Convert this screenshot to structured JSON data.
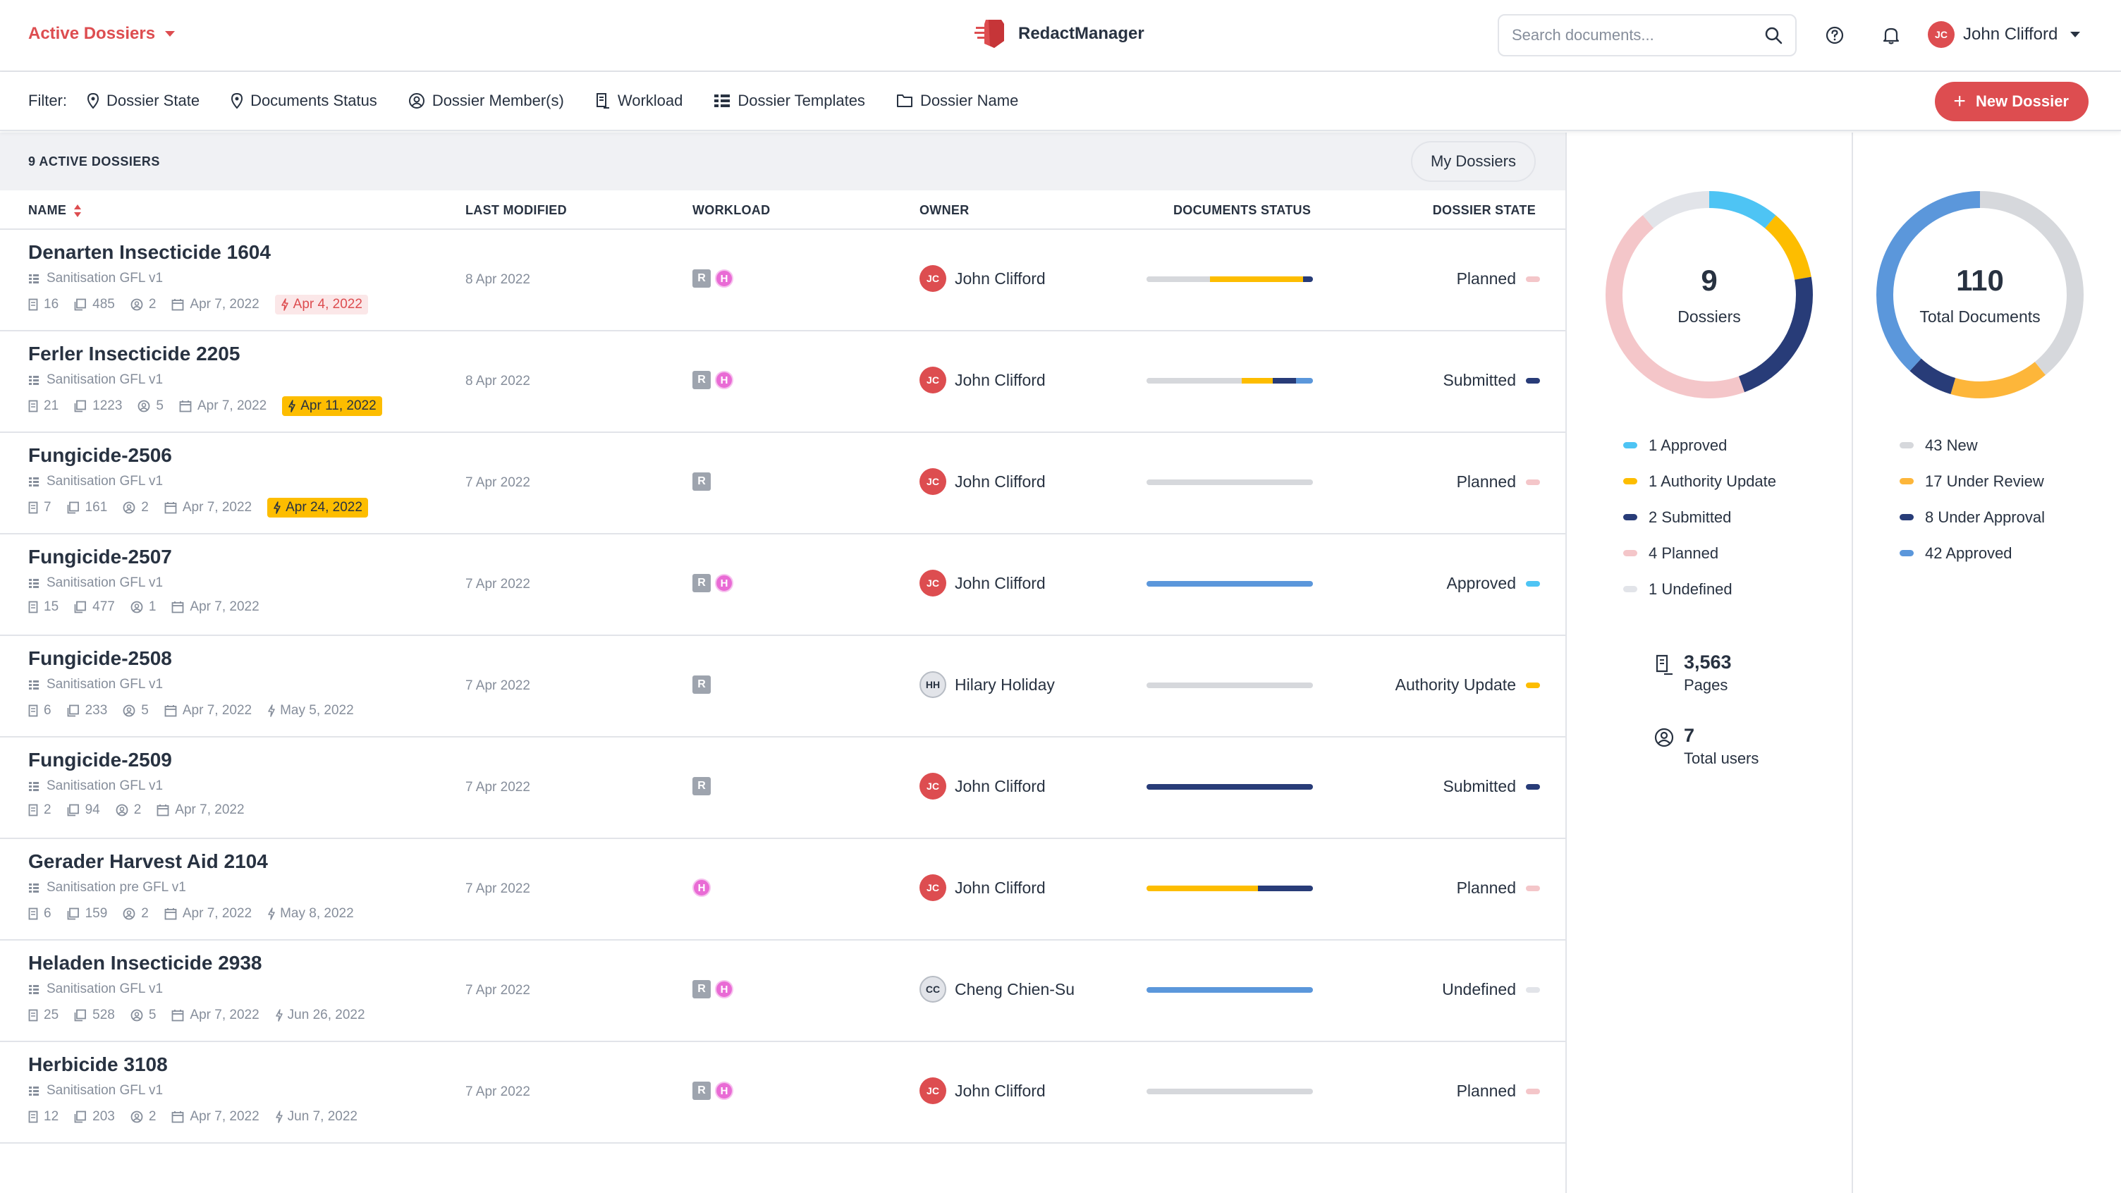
{
  "header": {
    "workspace_selector": "Active Dossiers",
    "brand_name": "RedactManager",
    "search_placeholder": "Search documents...",
    "user": {
      "initials": "JC",
      "name": "John Clifford"
    }
  },
  "filters": {
    "label": "Filter:",
    "items": [
      {
        "label": "Dossier State",
        "icon": "pin-icon"
      },
      {
        "label": "Documents Status",
        "icon": "pin-icon"
      },
      {
        "label": "Dossier Member(s)",
        "icon": "user-circle-icon"
      },
      {
        "label": "Workload",
        "icon": "document-edit-icon"
      },
      {
        "label": "Dossier Templates",
        "icon": "template-list-icon"
      },
      {
        "label": "Dossier Name",
        "icon": "folder-icon"
      }
    ],
    "new_button": "New Dossier"
  },
  "list": {
    "count_label": "9 ACTIVE DOSSIERS",
    "my_dossiers_button": "My Dossiers",
    "columns": [
      "NAME",
      "LAST MODIFIED",
      "WORKLOAD",
      "OWNER",
      "DOCUMENTS STATUS",
      "DOSSIER STATE"
    ],
    "rows": [
      {
        "name": "Denarten Insecticide 1604",
        "template": "Sanitisation GFL v1",
        "documents": "16",
        "pages": "485",
        "members": "2",
        "created": "Apr 7, 2022",
        "due": "Apr 4, 2022",
        "due_style": "red",
        "modified": "8 Apr 2022",
        "workload": [
          "R",
          "H"
        ],
        "owner_initials": "JC",
        "owner": "John Clifford",
        "owner_style": "red",
        "state": "Planned",
        "state_color": "#f4c6c9",
        "status": [
          {
            "color": "#d6d8dc",
            "fraction": 0.38
          },
          {
            "color": "#fdbd00",
            "fraction": 0.56
          },
          {
            "color": "#283c78",
            "fraction": 0.06
          }
        ]
      },
      {
        "name": "Ferler Insecticide 2205",
        "template": "Sanitisation GFL v1",
        "documents": "21",
        "pages": "1223",
        "members": "5",
        "created": "Apr 7, 2022",
        "due": "Apr 11, 2022",
        "due_style": "yellow",
        "modified": "8 Apr 2022",
        "workload": [
          "R",
          "H"
        ],
        "owner_initials": "JC",
        "owner": "John Clifford",
        "owner_style": "red",
        "state": "Submitted",
        "state_color": "#283c78",
        "status": [
          {
            "color": "#d6d8dc",
            "fraction": 0.57
          },
          {
            "color": "#fdbd00",
            "fraction": 0.19
          },
          {
            "color": "#283c78",
            "fraction": 0.14
          },
          {
            "color": "#5b97db",
            "fraction": 0.1
          }
        ]
      },
      {
        "name": "Fungicide-2506",
        "template": "Sanitisation GFL v1",
        "documents": "7",
        "pages": "161",
        "members": "2",
        "created": "Apr 7, 2022",
        "due": "Apr 24, 2022",
        "due_style": "yellow",
        "modified": "7 Apr 2022",
        "workload": [
          "R"
        ],
        "owner_initials": "JC",
        "owner": "John Clifford",
        "owner_style": "red",
        "state": "Planned",
        "state_color": "#f4c6c9",
        "status": [
          {
            "color": "#d6d8dc",
            "fraction": 1.0
          }
        ]
      },
      {
        "name": "Fungicide-2507",
        "template": "Sanitisation GFL v1",
        "documents": "15",
        "pages": "477",
        "members": "1",
        "created": "Apr 7, 2022",
        "due": "",
        "due_style": "none",
        "modified": "7 Apr 2022",
        "workload": [
          "R",
          "H"
        ],
        "owner_initials": "JC",
        "owner": "John Clifford",
        "owner_style": "red",
        "state": "Approved",
        "state_color": "#4ec4f4",
        "status": [
          {
            "color": "#5b97db",
            "fraction": 1.0
          }
        ]
      },
      {
        "name": "Fungicide-2508",
        "template": "Sanitisation GFL v1",
        "documents": "6",
        "pages": "233",
        "members": "5",
        "created": "Apr 7, 2022",
        "due": "May 5, 2022",
        "due_style": "plain",
        "modified": "7 Apr 2022",
        "workload": [
          "R"
        ],
        "owner_initials": "HH",
        "owner": "Hilary Holiday",
        "owner_style": "gray",
        "state": "Authority Update",
        "state_color": "#fdbd00",
        "status": [
          {
            "color": "#d6d8dc",
            "fraction": 1.0
          }
        ]
      },
      {
        "name": "Fungicide-2509",
        "template": "Sanitisation GFL v1",
        "documents": "2",
        "pages": "94",
        "members": "2",
        "created": "Apr 7, 2022",
        "due": "",
        "due_style": "none",
        "modified": "7 Apr 2022",
        "workload": [
          "R"
        ],
        "owner_initials": "JC",
        "owner": "John Clifford",
        "owner_style": "red",
        "state": "Submitted",
        "state_color": "#283c78",
        "status": [
          {
            "color": "#283c78",
            "fraction": 1.0
          }
        ]
      },
      {
        "name": "Gerader Harvest Aid 2104",
        "template": "Sanitisation pre GFL v1",
        "documents": "6",
        "pages": "159",
        "members": "2",
        "created": "Apr 7, 2022",
        "due": "May 8, 2022",
        "due_style": "plain",
        "modified": "7 Apr 2022",
        "workload": [
          "H"
        ],
        "owner_initials": "JC",
        "owner": "John Clifford",
        "owner_style": "red",
        "state": "Planned",
        "state_color": "#f4c6c9",
        "status": [
          {
            "color": "#fdbd00",
            "fraction": 0.67
          },
          {
            "color": "#283c78",
            "fraction": 0.33
          }
        ]
      },
      {
        "name": "Heladen Insecticide 2938",
        "template": "Sanitisation GFL v1",
        "documents": "25",
        "pages": "528",
        "members": "5",
        "created": "Apr 7, 2022",
        "due": "Jun 26, 2022",
        "due_style": "plain",
        "modified": "7 Apr 2022",
        "workload": [
          "R",
          "H"
        ],
        "owner_initials": "CC",
        "owner": "Cheng Chien-Su",
        "owner_style": "gray",
        "state": "Undefined",
        "state_color": "#e2e4e9",
        "status": [
          {
            "color": "#5b97db",
            "fraction": 1.0
          }
        ]
      },
      {
        "name": "Herbicide 3108",
        "template": "Sanitisation GFL v1",
        "documents": "12",
        "pages": "203",
        "members": "2",
        "created": "Apr 7, 2022",
        "due": "Jun 7, 2022",
        "due_style": "plain",
        "modified": "7 Apr 2022",
        "workload": [
          "R",
          "H"
        ],
        "owner_initials": "JC",
        "owner": "John Clifford",
        "owner_style": "red",
        "state": "Planned",
        "state_color": "#f4c6c9",
        "status": [
          {
            "color": "#d6d8dc",
            "fraction": 1.0
          }
        ]
      }
    ]
  },
  "dossiers_chart": {
    "value": "9",
    "label": "Dossiers",
    "segments": [
      {
        "label": "1 Approved",
        "value": 1,
        "color": "#4ec4f4"
      },
      {
        "label": "1 Authority Update",
        "value": 1,
        "color": "#fdbd00"
      },
      {
        "label": "2 Submitted",
        "value": 2,
        "color": "#283c78"
      },
      {
        "label": "4 Planned",
        "value": 4,
        "color": "#f4c6c9"
      },
      {
        "label": "1 Undefined",
        "value": 1,
        "color": "#e2e4e9"
      }
    ]
  },
  "documents_chart": {
    "value": "110",
    "label": "Total Documents",
    "segments": [
      {
        "label": "43 New",
        "value": 43,
        "color": "#d6d8dc"
      },
      {
        "label": "17 Under Review",
        "value": 17,
        "color": "#fdb63a"
      },
      {
        "label": "8 Under Approval",
        "value": 8,
        "color": "#283c78"
      },
      {
        "label": "42 Approved",
        "value": 42,
        "color": "#5b97db"
      }
    ]
  },
  "stats": {
    "pages_value": "3,563",
    "pages_label": "Pages",
    "users_value": "7",
    "users_label": "Total users"
  }
}
